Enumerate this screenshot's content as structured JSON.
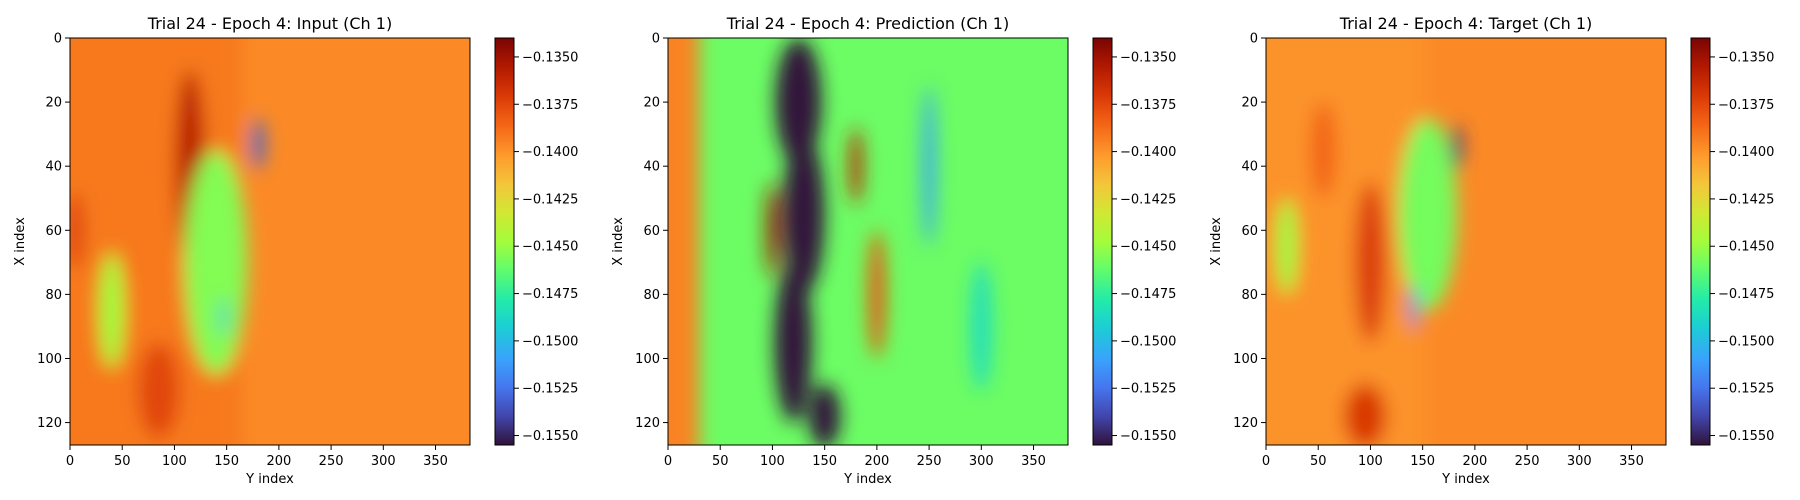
{
  "chart_data": [
    {
      "type": "heatmap",
      "title": "Trial 24 - Epoch 4: Input (Ch 1)",
      "xlabel": "Y index",
      "ylabel": "X index",
      "xlim": [
        0,
        383
      ],
      "ylim": [
        127,
        0
      ],
      "x_ticks": [
        "0",
        "50",
        "100",
        "150",
        "200",
        "250",
        "300",
        "350"
      ],
      "y_ticks": [
        "0",
        "20",
        "40",
        "60",
        "80",
        "100",
        "120"
      ],
      "colormap": "turbo",
      "colorbar": {
        "range": [
          -0.1555,
          -0.134
        ],
        "ticks": [
          "−0.1350",
          "−0.1375",
          "−0.1400",
          "−0.1425",
          "−0.1450",
          "−0.1475",
          "−0.1500",
          "−0.1525",
          "−0.1550"
        ]
      },
      "field": {
        "background": -0.1397,
        "left_band": {
          "value": -0.1392,
          "y_extent": [
            0,
            165
          ]
        },
        "features": [
          {
            "kind": "hot",
            "center": [
              115,
              40
            ],
            "radius": [
              14,
              30
            ],
            "value": -0.1358
          },
          {
            "kind": "hot",
            "center": [
              5,
              60
            ],
            "radius": [
              8,
              12
            ],
            "value": -0.1372
          },
          {
            "kind": "hot",
            "center": [
              85,
              110
            ],
            "radius": [
              20,
              15
            ],
            "value": -0.1375
          },
          {
            "kind": "cool",
            "center": [
              140,
              70
            ],
            "radius": [
              30,
              35
            ],
            "value": -0.1455
          },
          {
            "kind": "cool",
            "center": [
              40,
              85
            ],
            "radius": [
              12,
              18
            ],
            "value": -0.1448
          },
          {
            "kind": "cold",
            "center": [
              180,
              33
            ],
            "radius": [
              6,
              8
            ],
            "value": -0.153
          },
          {
            "kind": "cold",
            "center": [
              147,
              87
            ],
            "radius": [
              3,
              6
            ],
            "value": -0.15
          }
        ]
      }
    },
    {
      "type": "heatmap",
      "title": "Trial 24 - Epoch 4: Prediction (Ch 1)",
      "xlabel": "Y index",
      "ylabel": "X index",
      "xlim": [
        0,
        383
      ],
      "ylim": [
        127,
        0
      ],
      "x_ticks": [
        "0",
        "50",
        "100",
        "150",
        "200",
        "250",
        "300",
        "350"
      ],
      "y_ticks": [
        "0",
        "20",
        "40",
        "60",
        "80",
        "100",
        "120"
      ],
      "colormap": "turbo",
      "colorbar": {
        "range": [
          -0.1555,
          -0.134
        ],
        "ticks": [
          "−0.1350",
          "−0.1375",
          "−0.1400",
          "−0.1425",
          "−0.1450",
          "−0.1475",
          "−0.1500",
          "−0.1525",
          "−0.1550"
        ]
      },
      "field": {
        "background": -0.146,
        "left_band": {
          "value": -0.1395,
          "y_extent": [
            0,
            30
          ]
        },
        "features": [
          {
            "kind": "cold",
            "center": [
              125,
              20
            ],
            "radius": [
              22,
              20
            ],
            "value": -0.1555
          },
          {
            "kind": "cold",
            "center": [
              130,
              55
            ],
            "radius": [
              20,
              25
            ],
            "value": -0.1555
          },
          {
            "kind": "cold",
            "center": [
              120,
              95
            ],
            "radius": [
              18,
              25
            ],
            "value": -0.1555
          },
          {
            "kind": "cold",
            "center": [
              150,
              118
            ],
            "radius": [
              15,
              10
            ],
            "value": -0.1555
          },
          {
            "kind": "hot",
            "center": [
              100,
              60
            ],
            "radius": [
              6,
              15
            ],
            "value": -0.135
          },
          {
            "kind": "hot",
            "center": [
              180,
              40
            ],
            "radius": [
              6,
              12
            ],
            "value": -0.136
          },
          {
            "kind": "hot",
            "center": [
              200,
              80
            ],
            "radius": [
              8,
              20
            ],
            "value": -0.138
          },
          {
            "kind": "cool",
            "center": [
              250,
              40
            ],
            "radius": [
              6,
              25
            ],
            "value": -0.151
          },
          {
            "kind": "cool",
            "center": [
              300,
              90
            ],
            "radius": [
              10,
              20
            ],
            "value": -0.1485
          }
        ]
      }
    },
    {
      "type": "heatmap",
      "title": "Trial 24 - Epoch 4: Target (Ch 1)",
      "xlabel": "Y index",
      "ylabel": "X index",
      "xlim": [
        0,
        383
      ],
      "ylim": [
        127,
        0
      ],
      "x_ticks": [
        "0",
        "50",
        "100",
        "150",
        "200",
        "250",
        "300",
        "350"
      ],
      "y_ticks": [
        "0",
        "20",
        "40",
        "60",
        "80",
        "100",
        "120"
      ],
      "colormap": "turbo",
      "colorbar": {
        "range": [
          -0.1555,
          -0.134
        ],
        "ticks": [
          "−0.1350",
          "−0.1375",
          "−0.1400",
          "−0.1425",
          "−0.1450",
          "−0.1475",
          "−0.1500",
          "−0.1525",
          "−0.1550"
        ]
      },
      "field": {
        "background": -0.1397,
        "left_band": {
          "value": -0.14,
          "y_extent": [
            0,
            150
          ]
        },
        "features": [
          {
            "kind": "hot",
            "center": [
              100,
              70
            ],
            "radius": [
              15,
              25
            ],
            "value": -0.1372
          },
          {
            "kind": "hot",
            "center": [
              95,
              118
            ],
            "radius": [
              20,
              10
            ],
            "value": -0.137
          },
          {
            "kind": "hot",
            "center": [
              55,
              35
            ],
            "radius": [
              12,
              15
            ],
            "value": -0.1385
          },
          {
            "kind": "cool",
            "center": [
              155,
              55
            ],
            "radius": [
              28,
              30
            ],
            "value": -0.1458
          },
          {
            "kind": "cool",
            "center": [
              20,
              65
            ],
            "radius": [
              10,
              15
            ],
            "value": -0.145
          },
          {
            "kind": "cold",
            "center": [
              183,
              34
            ],
            "radius": [
              5,
              7
            ],
            "value": -0.1545
          },
          {
            "kind": "cold",
            "center": [
              142,
              84
            ],
            "radius": [
              4,
              7
            ],
            "value": -0.152
          }
        ]
      }
    }
  ]
}
